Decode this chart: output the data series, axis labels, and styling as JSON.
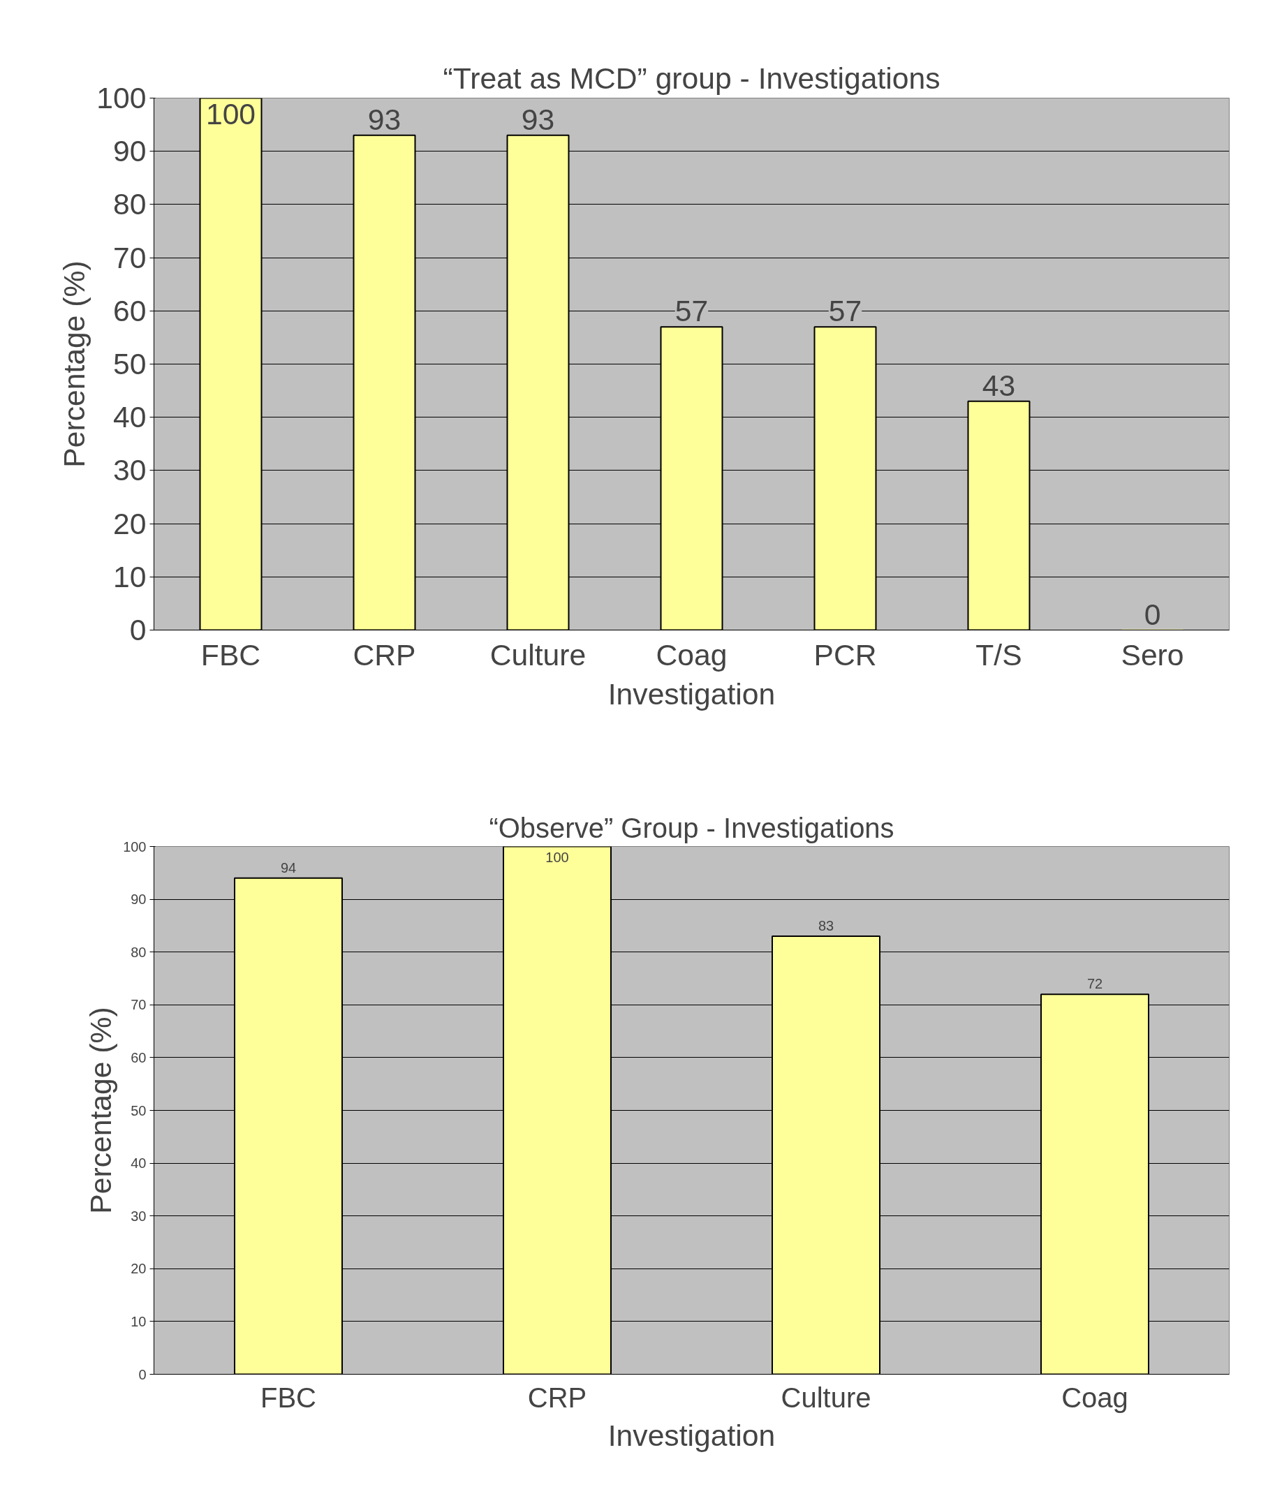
{
  "chart_data": [
    {
      "type": "bar",
      "title": "“Treat as MCD” group - Investigations",
      "xlabel": "Investigation",
      "ylabel": "Percentage (%)",
      "categories": [
        "FBC",
        "CRP",
        "Culture",
        "Coag",
        "PCR",
        "T/S",
        "Sero"
      ],
      "values": [
        100,
        93,
        93,
        57,
        57,
        43,
        0
      ],
      "color": "#ffff99",
      "ylim": [
        0,
        100
      ],
      "yticks": [
        0,
        10,
        20,
        30,
        40,
        50,
        60,
        70,
        80,
        90,
        100
      ],
      "grid": "y",
      "data_labels": true
    },
    {
      "type": "bar",
      "title": "“Observe” Group - Investigations",
      "xlabel": "Investigation",
      "ylabel": "Percentage (%)",
      "categories": [
        "FBC",
        "CRP",
        "Culture",
        "Coag"
      ],
      "values": [
        94,
        100,
        83,
        72
      ],
      "color": "#ffff99",
      "ylim": [
        0,
        100
      ],
      "yticks": [
        0,
        10,
        20,
        30,
        40,
        50,
        60,
        70,
        80,
        90,
        100
      ],
      "grid": "y",
      "data_labels": true
    }
  ]
}
